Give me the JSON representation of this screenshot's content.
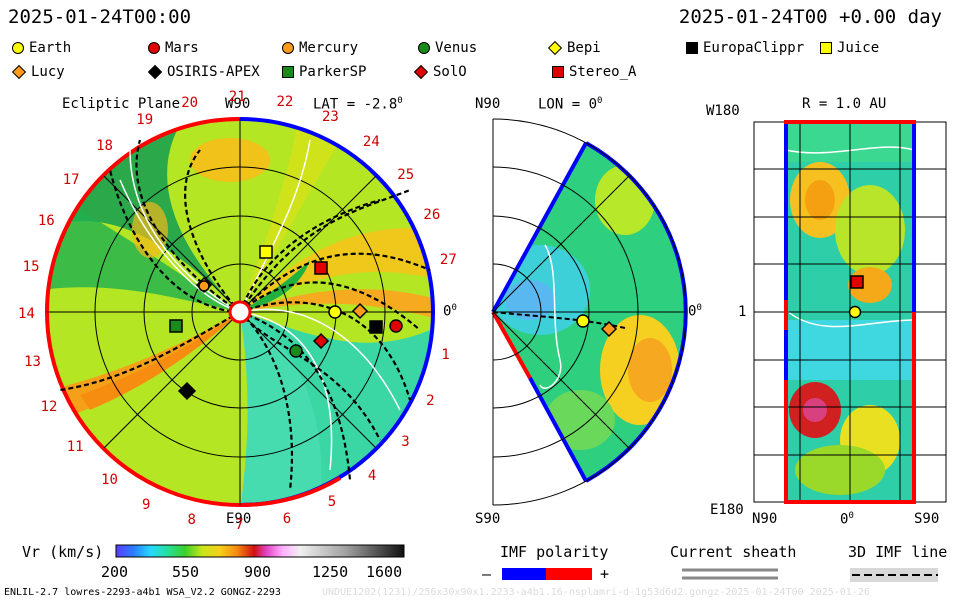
{
  "header": {
    "left_timestamp": "2025-01-24T00:00",
    "right_timestamp": "2025-01-24T00 +0.00 day"
  },
  "legend": {
    "objects": [
      {
        "label": "Earth",
        "shape": "circle",
        "color": "#ffff00"
      },
      {
        "label": "Mars",
        "shape": "circle",
        "color": "#e00000"
      },
      {
        "label": "Mercury",
        "shape": "circle",
        "color": "#ff9a1a"
      },
      {
        "label": "Venus",
        "shape": "circle",
        "color": "#1a8a1a"
      },
      {
        "label": "Bepi",
        "shape": "diamond",
        "color": "#ffff00"
      },
      {
        "label": "EuropaClippr",
        "shape": "square",
        "color": "#000000"
      },
      {
        "label": "Juice",
        "shape": "square",
        "color": "#ffff00"
      },
      {
        "label": "Lucy",
        "shape": "diamond",
        "color": "#ff9a1a"
      },
      {
        "label": "OSIRIS-APEX",
        "shape": "diamond",
        "color": "#000000"
      },
      {
        "label": "ParkerSP",
        "shape": "square",
        "color": "#1a8a1a"
      },
      {
        "label": "SolO",
        "shape": "diamond",
        "color": "#e00000"
      },
      {
        "label": "Stereo_A",
        "shape": "square",
        "color": "#e00000"
      }
    ]
  },
  "ecliptic_panel": {
    "title": "Ecliptic Plane",
    "lat_label": "LAT = -2.8",
    "deg_sup": "0",
    "top_label": "W90",
    "bottom_label": "E90",
    "right_label": "0",
    "carrington_labels": [
      "1",
      "2",
      "3",
      "4",
      "5",
      "6",
      "7",
      "8",
      "9",
      "10",
      "11",
      "12",
      "13",
      "14",
      "15",
      "16",
      "17",
      "18",
      "19",
      "20",
      "21",
      "22",
      "23",
      "24",
      "25",
      "26",
      "27"
    ]
  },
  "meridional_panel": {
    "lon_label": "LON = 0",
    "deg_sup": "0",
    "top_label": "N90",
    "bottom_label": "S90",
    "right_label": "0"
  },
  "radial_panel": {
    "r_label": "R = 1.0 AU",
    "top_left_label": "W180",
    "mid_left_label": "1",
    "bottom_left_label": "E180",
    "x_labels": [
      "N90",
      "0",
      "S90"
    ],
    "deg_sup": "0"
  },
  "colorbar": {
    "title": "Vr (km/s)",
    "ticks": [
      "200",
      "550",
      "900",
      "1250",
      "1600"
    ]
  },
  "imf": {
    "title": "IMF polarity",
    "minus": "–",
    "plus": "+",
    "negative_color": "#0000ff",
    "positive_color": "#ff0000"
  },
  "current_sheath": {
    "title": "Current sheath"
  },
  "imf_line": {
    "title": "3D IMF line"
  },
  "footer": {
    "left": "ENLIL-2.7 lowres-2293-a4b1 WSA_V2.2 GONGZ-2293",
    "right": "UNDUE1202(1231)/256x30x90x1.2233-a4b1.16-nsplamri-d-1g53d6d2.gongz-2025-01-24T00   2025-01-26"
  }
}
